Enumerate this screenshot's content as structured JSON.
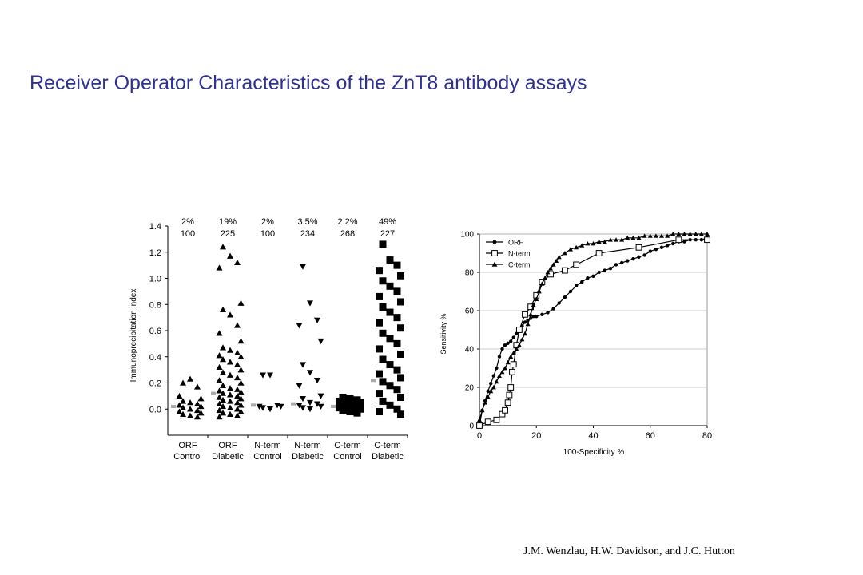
{
  "slide": {
    "title": "Receiver Operator Characteristics of the ZnT8 antibody assays",
    "credit": "J.M. Wenzlau, H.W. Davidson, and J.C. Hutton"
  },
  "chart_data": [
    {
      "type": "scatter",
      "ylabel": "Immunoprecipitation index",
      "ylim": [
        -0.2,
        1.4
      ],
      "yticks": [
        1.4,
        1.2,
        1.0,
        0.8,
        0.6,
        0.4,
        0.2,
        0.0
      ],
      "ytick_labels": [
        "1.4",
        "1.2",
        "1.0",
        "0.8",
        "0.6",
        "0.4",
        "0.2",
        "0.0"
      ],
      "grid": false,
      "groups": [
        {
          "label_line1": "ORF",
          "label_line2": "Control",
          "percent": "2%",
          "n": "100",
          "marker": "triangle-up",
          "median": 0.02,
          "values": [
            0.2,
            0.23,
            0.17,
            0.1,
            0.08,
            0.06,
            0.05,
            0.04,
            0.03,
            0.02,
            0.01,
            0.0,
            -0.01,
            -0.02,
            -0.03,
            -0.04,
            -0.05,
            -0.06
          ]
        },
        {
          "label_line1": "ORF",
          "label_line2": "Diabetic",
          "percent": "19%",
          "n": "225",
          "marker": "triangle-up",
          "median": 0.12,
          "values": [
            1.24,
            1.17,
            1.12,
            1.08,
            0.81,
            0.76,
            0.72,
            0.64,
            0.58,
            0.52,
            0.47,
            0.45,
            0.43,
            0.41,
            0.4,
            0.38,
            0.36,
            0.34,
            0.32,
            0.3,
            0.28,
            0.26,
            0.24,
            0.22,
            0.2,
            0.18,
            0.16,
            0.15,
            0.14,
            0.13,
            0.12,
            0.11,
            0.1,
            0.09,
            0.08,
            0.07,
            0.06,
            0.05,
            0.04,
            0.03,
            0.02,
            0.01,
            0.0,
            -0.01,
            -0.02,
            -0.03,
            -0.04,
            -0.05,
            -0.06
          ]
        },
        {
          "label_line1": "N-term",
          "label_line2": "Control",
          "percent": "2%",
          "n": "100",
          "marker": "triangle-down",
          "median": 0.03,
          "values": [
            0.26,
            0.26,
            0.03,
            0.02,
            0.02,
            0.01,
            0.0
          ]
        },
        {
          "label_line1": "N-term",
          "label_line2": "Diabetic",
          "percent": "3.5%",
          "n": "234",
          "marker": "triangle-down",
          "median": 0.04,
          "values": [
            1.09,
            0.81,
            0.68,
            0.64,
            0.52,
            0.34,
            0.28,
            0.22,
            0.18,
            0.1,
            0.08,
            0.05,
            0.04,
            0.03,
            0.02,
            0.01,
            0.0
          ]
        },
        {
          "label_line1": "C-term",
          "label_line2": "Control",
          "percent": "2.2%",
          "n": "268",
          "marker": "square",
          "median": 0.02,
          "values": [
            0.09,
            0.08,
            0.07,
            0.06,
            0.05,
            0.04,
            0.03,
            0.02,
            0.01,
            0.0,
            -0.01,
            -0.02,
            -0.03
          ]
        },
        {
          "label_line1": "C-term",
          "label_line2": "Diabetic",
          "percent": "49%",
          "n": "227",
          "marker": "square",
          "median": 0.22,
          "values": [
            1.26,
            1.14,
            1.1,
            1.06,
            1.02,
            0.98,
            0.94,
            0.9,
            0.86,
            0.82,
            0.78,
            0.74,
            0.7,
            0.66,
            0.62,
            0.58,
            0.54,
            0.5,
            0.46,
            0.42,
            0.38,
            0.34,
            0.3,
            0.27,
            0.24,
            0.21,
            0.18,
            0.15,
            0.12,
            0.09,
            0.06,
            0.03,
            0.0,
            -0.02,
            -0.04
          ]
        }
      ]
    },
    {
      "type": "line",
      "xlabel": "100-Specificity %",
      "ylabel": "Sensitivity %",
      "xlim": [
        0,
        80
      ],
      "ylim": [
        0,
        100
      ],
      "xticks": [
        0,
        20,
        40,
        60,
        80
      ],
      "yticks": [
        0,
        20,
        40,
        60,
        80,
        100
      ],
      "grid": true,
      "legend": "top-left",
      "series": [
        {
          "name": "ORF",
          "marker": "circle",
          "x": [
            0,
            1,
            2,
            3,
            4,
            5,
            6,
            7,
            8,
            9,
            10,
            11,
            12,
            13,
            14,
            15,
            16,
            17,
            18,
            19,
            20,
            22,
            24,
            26,
            28,
            30,
            32,
            34,
            36,
            38,
            40,
            42,
            44,
            46,
            48,
            50,
            52,
            54,
            56,
            58,
            60,
            62,
            64,
            66,
            68,
            70,
            72,
            74,
            76,
            78,
            80
          ],
          "y": [
            0,
            8,
            13,
            18,
            22,
            26,
            30,
            36,
            40,
            42,
            43,
            44,
            46,
            48,
            50,
            52,
            54,
            55,
            56,
            57,
            57,
            58,
            59,
            61,
            64,
            67,
            70,
            73,
            75,
            77,
            78,
            80,
            81,
            82,
            84,
            85,
            86,
            87,
            88,
            89,
            91,
            92,
            93,
            94,
            95,
            96,
            96,
            97,
            97,
            97,
            98
          ]
        },
        {
          "name": "N-term",
          "marker": "square-open",
          "x": [
            0,
            3,
            6,
            8,
            9,
            10,
            10.5,
            11,
            11.5,
            12,
            13,
            14,
            16,
            18,
            20,
            22,
            25,
            30,
            34,
            42,
            56,
            70,
            80
          ],
          "y": [
            0,
            2,
            3,
            6,
            8,
            12,
            16,
            20,
            28,
            32,
            42,
            50,
            58,
            62,
            68,
            75,
            79,
            81,
            84,
            90,
            93,
            97,
            97
          ]
        },
        {
          "name": "C-term",
          "marker": "triangle-up",
          "x": [
            0,
            1,
            2,
            3,
            4,
            5,
            6,
            7,
            8,
            9,
            10,
            11,
            12,
            13,
            14,
            15,
            16,
            17,
            18,
            19,
            20,
            21,
            22,
            23,
            24,
            25,
            26,
            27,
            28,
            30,
            32,
            34,
            36,
            38,
            40,
            42,
            44,
            46,
            48,
            50,
            52,
            54,
            56,
            58,
            60,
            62,
            64,
            66,
            68,
            70,
            72,
            74,
            76,
            78,
            80
          ],
          "y": [
            3,
            8,
            12,
            15,
            18,
            20,
            23,
            26,
            28,
            30,
            33,
            36,
            38,
            40,
            42,
            45,
            48,
            53,
            58,
            63,
            66,
            70,
            74,
            77,
            80,
            82,
            84,
            86,
            88,
            90,
            92,
            93,
            94,
            95,
            95,
            96,
            96,
            97,
            97,
            97,
            98,
            98,
            98,
            99,
            99,
            99,
            99,
            99,
            100,
            100,
            100,
            100,
            100,
            100,
            100
          ]
        }
      ]
    }
  ]
}
